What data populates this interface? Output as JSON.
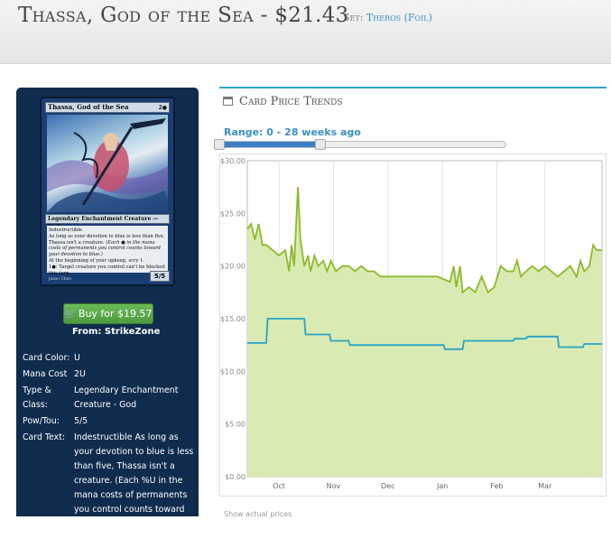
{
  "header": {
    "title": "Thassa, God of the Sea - $21.43",
    "set_label": "Set:",
    "set_name": "Theros (Foil)"
  },
  "card": {
    "name": "Thassa, God of the Sea",
    "mana_symbols": "2●",
    "type_line": "Legendary Enchantment Creature — God",
    "rules_1": "Indestructible",
    "rules_2": "As long as your devotion to blue is less than five, Thassa isn't a creature.",
    "rules_2_reminder": "(Each ● in the mana costs of permanents you control counts toward your devotion to blue.)",
    "rules_3": "At the beginning of your upkeep, scry 1.",
    "rules_4": "1●: Target creature you control can't be blocked this turn.",
    "pt": "5/5",
    "artist": "Jason Chan"
  },
  "buy": {
    "label": "Buy for $19.57",
    "from": "From: StrikeZone"
  },
  "attributes": [
    {
      "label": "Card Color:",
      "value": "U"
    },
    {
      "label": "Mana Cost",
      "value": "2U"
    },
    {
      "label": "Type & Class:",
      "value": "Legendary Enchantment Creature - God"
    },
    {
      "label": "Pow/Tou:",
      "value": "5/5"
    },
    {
      "label": "Card Text:",
      "value": "Indestructible As long as your devotion to blue is less than five, Thassa isn't a creature. (Each %U in the mana costs of permanents you control counts toward your devotion to blue.) At the beginning of"
    }
  ],
  "trends": {
    "title": "Card Price Trends",
    "range_label": "Range: 0 - 28 weeks ago",
    "range_fraction": [
      0.0,
      0.36
    ],
    "below": "Show actual prices"
  },
  "colors": {
    "panel_bg": "#0f2c4e",
    "accent_blue": "#3a8fc7",
    "buy_green": "#5aa848",
    "retail_line": "#8cba2a",
    "retail_fill": "#d9ebb3",
    "buylist_line": "#29a3c6"
  },
  "chart_data": {
    "type": "area",
    "x_ticks": [
      "Oct",
      "Nov",
      "Dec",
      "Jan",
      "Feb",
      "Mar"
    ],
    "y_ticks": [
      "$0.00",
      "$5.00",
      "$10.00",
      "$15.00",
      "$20.00",
      "$25.00",
      "$30.00"
    ],
    "ylim": [
      0,
      30
    ],
    "xlim": [
      0,
      28
    ],
    "x_tick_positions": [
      2.5,
      6.8,
      11.1,
      15.4,
      19.7,
      23.5
    ],
    "grid": "vertical",
    "series": [
      {
        "style": "area",
        "x": [
          0,
          0.3,
          0.6,
          0.9,
          1.2,
          1.5,
          2.0,
          2.5,
          3.0,
          3.3,
          3.5,
          3.7,
          4.0,
          4.2,
          4.5,
          4.8,
          5.0,
          5.3,
          5.6,
          6.0,
          6.3,
          6.6,
          7.0,
          7.5,
          8.0,
          8.5,
          9.0,
          9.5,
          10.0,
          10.5,
          11.0,
          12.0,
          13.0,
          14.0,
          15.0,
          16.0,
          16.3,
          16.5,
          16.8,
          17.0,
          17.5,
          18.0,
          18.5,
          19.0,
          19.5,
          20.0,
          20.5,
          21.0,
          21.3,
          21.6,
          22.0,
          22.5,
          23.0,
          23.5,
          24.0,
          24.5,
          25.0,
          25.5,
          26.0,
          26.3,
          26.6,
          27.0,
          27.3,
          27.6,
          28.0
        ],
        "values": [
          23.5,
          24.0,
          22.5,
          24.0,
          22.0,
          22.0,
          21.5,
          21.0,
          21.5,
          19.5,
          22.0,
          20.0,
          27.5,
          22.5,
          20.0,
          21.0,
          19.5,
          21.0,
          20.0,
          20.5,
          19.5,
          20.5,
          19.5,
          20.0,
          20.0,
          19.5,
          20.0,
          19.5,
          19.5,
          19.0,
          19.0,
          19.0,
          19.0,
          19.0,
          19.0,
          18.5,
          20.0,
          18.0,
          20.0,
          17.5,
          18.0,
          17.5,
          19.0,
          17.5,
          18.0,
          20.0,
          19.5,
          19.5,
          20.5,
          19.0,
          19.5,
          20.0,
          19.5,
          20.0,
          19.5,
          19.0,
          19.5,
          20.0,
          19.0,
          20.5,
          19.5,
          20.0,
          22.0,
          21.5,
          21.5
        ]
      },
      {
        "style": "line",
        "x": [
          0,
          1.5,
          1.6,
          4.5,
          4.6,
          6.5,
          6.6,
          8.0,
          8.1,
          15.5,
          15.6,
          17.0,
          17.1,
          21.0,
          21.1,
          22.0,
          22.1,
          24.5,
          24.6,
          26.5,
          26.6,
          28.0
        ],
        "values": [
          12.7,
          12.7,
          15.0,
          15.0,
          13.5,
          13.5,
          12.9,
          12.9,
          12.5,
          12.5,
          12.1,
          12.1,
          12.9,
          12.9,
          13.1,
          13.1,
          13.3,
          13.3,
          12.3,
          12.3,
          12.6,
          12.6
        ]
      }
    ]
  }
}
